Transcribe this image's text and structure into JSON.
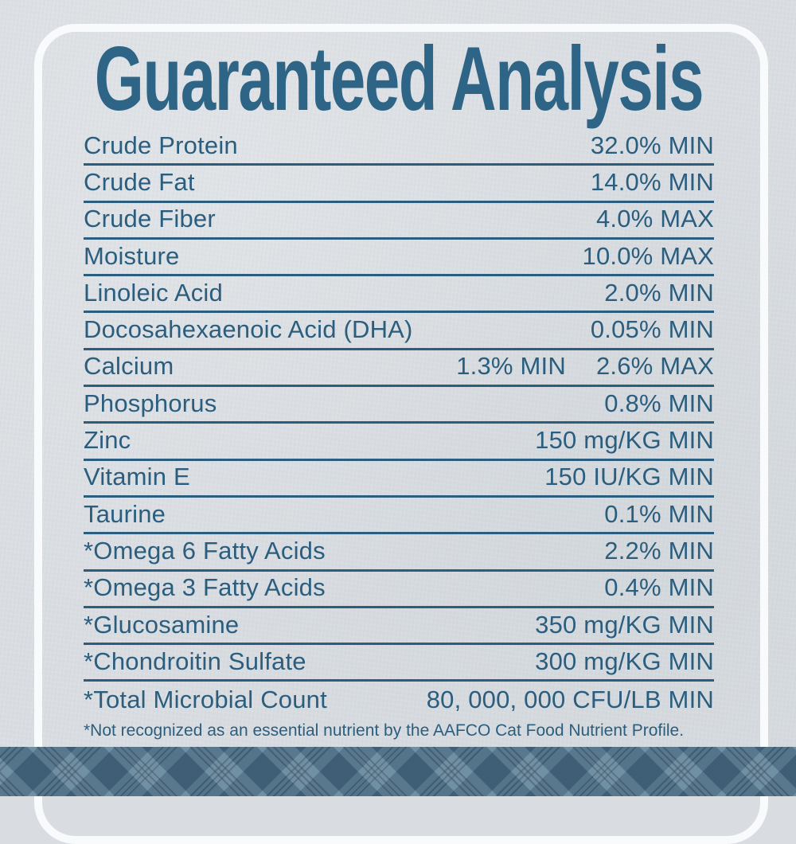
{
  "title": "Guaranteed Analysis",
  "table": {
    "rows": [
      {
        "name": "Crude Protein",
        "values": [
          "32.0% MIN"
        ]
      },
      {
        "name": "Crude Fat",
        "values": [
          "14.0% MIN"
        ]
      },
      {
        "name": "Crude Fiber",
        "values": [
          "4.0% MAX"
        ]
      },
      {
        "name": "Moisture",
        "values": [
          "10.0% MAX"
        ]
      },
      {
        "name": "Linoleic Acid",
        "values": [
          "2.0% MIN"
        ]
      },
      {
        "name": "Docosahexaenoic Acid (DHA)",
        "values": [
          "0.05% MIN"
        ]
      },
      {
        "name": "Calcium",
        "values": [
          "1.3% MIN",
          "2.6% MAX"
        ]
      },
      {
        "name": "Phosphorus",
        "values": [
          "0.8% MIN"
        ]
      },
      {
        "name": "Zinc",
        "values": [
          "150 mg/KG MIN"
        ]
      },
      {
        "name": "Vitamin E",
        "values": [
          "150 IU/KG MIN"
        ]
      },
      {
        "name": "Taurine",
        "values": [
          "0.1% MIN"
        ]
      },
      {
        "name": "*Omega 6 Fatty Acids",
        "values": [
          "2.2% MIN"
        ]
      },
      {
        "name": "*Omega 3 Fatty Acids",
        "values": [
          "0.4% MIN"
        ]
      },
      {
        "name": "*Glucosamine",
        "values": [
          "350 mg/KG MIN"
        ]
      },
      {
        "name": "*Chondroitin Sulfate",
        "values": [
          "300 mg/KG MIN"
        ]
      },
      {
        "name": "*Total Microbial Count",
        "values": [
          "80, 000, 000 CFU/LB MIN"
        ]
      }
    ]
  },
  "footnote": "*Not recognized as an essential nutrient by the AAFCO Cat Food Nutrient Profile.",
  "colors": {
    "ink": "#2b5e7e",
    "title": "#2e6485",
    "background": "#d9dde1",
    "frame": "#f8fafb",
    "plaid_base": "#54788f",
    "plaid_dark": "#3f637d",
    "plaid_light": "#6b8aa0",
    "plaid_pinstripe": "#27455c"
  }
}
